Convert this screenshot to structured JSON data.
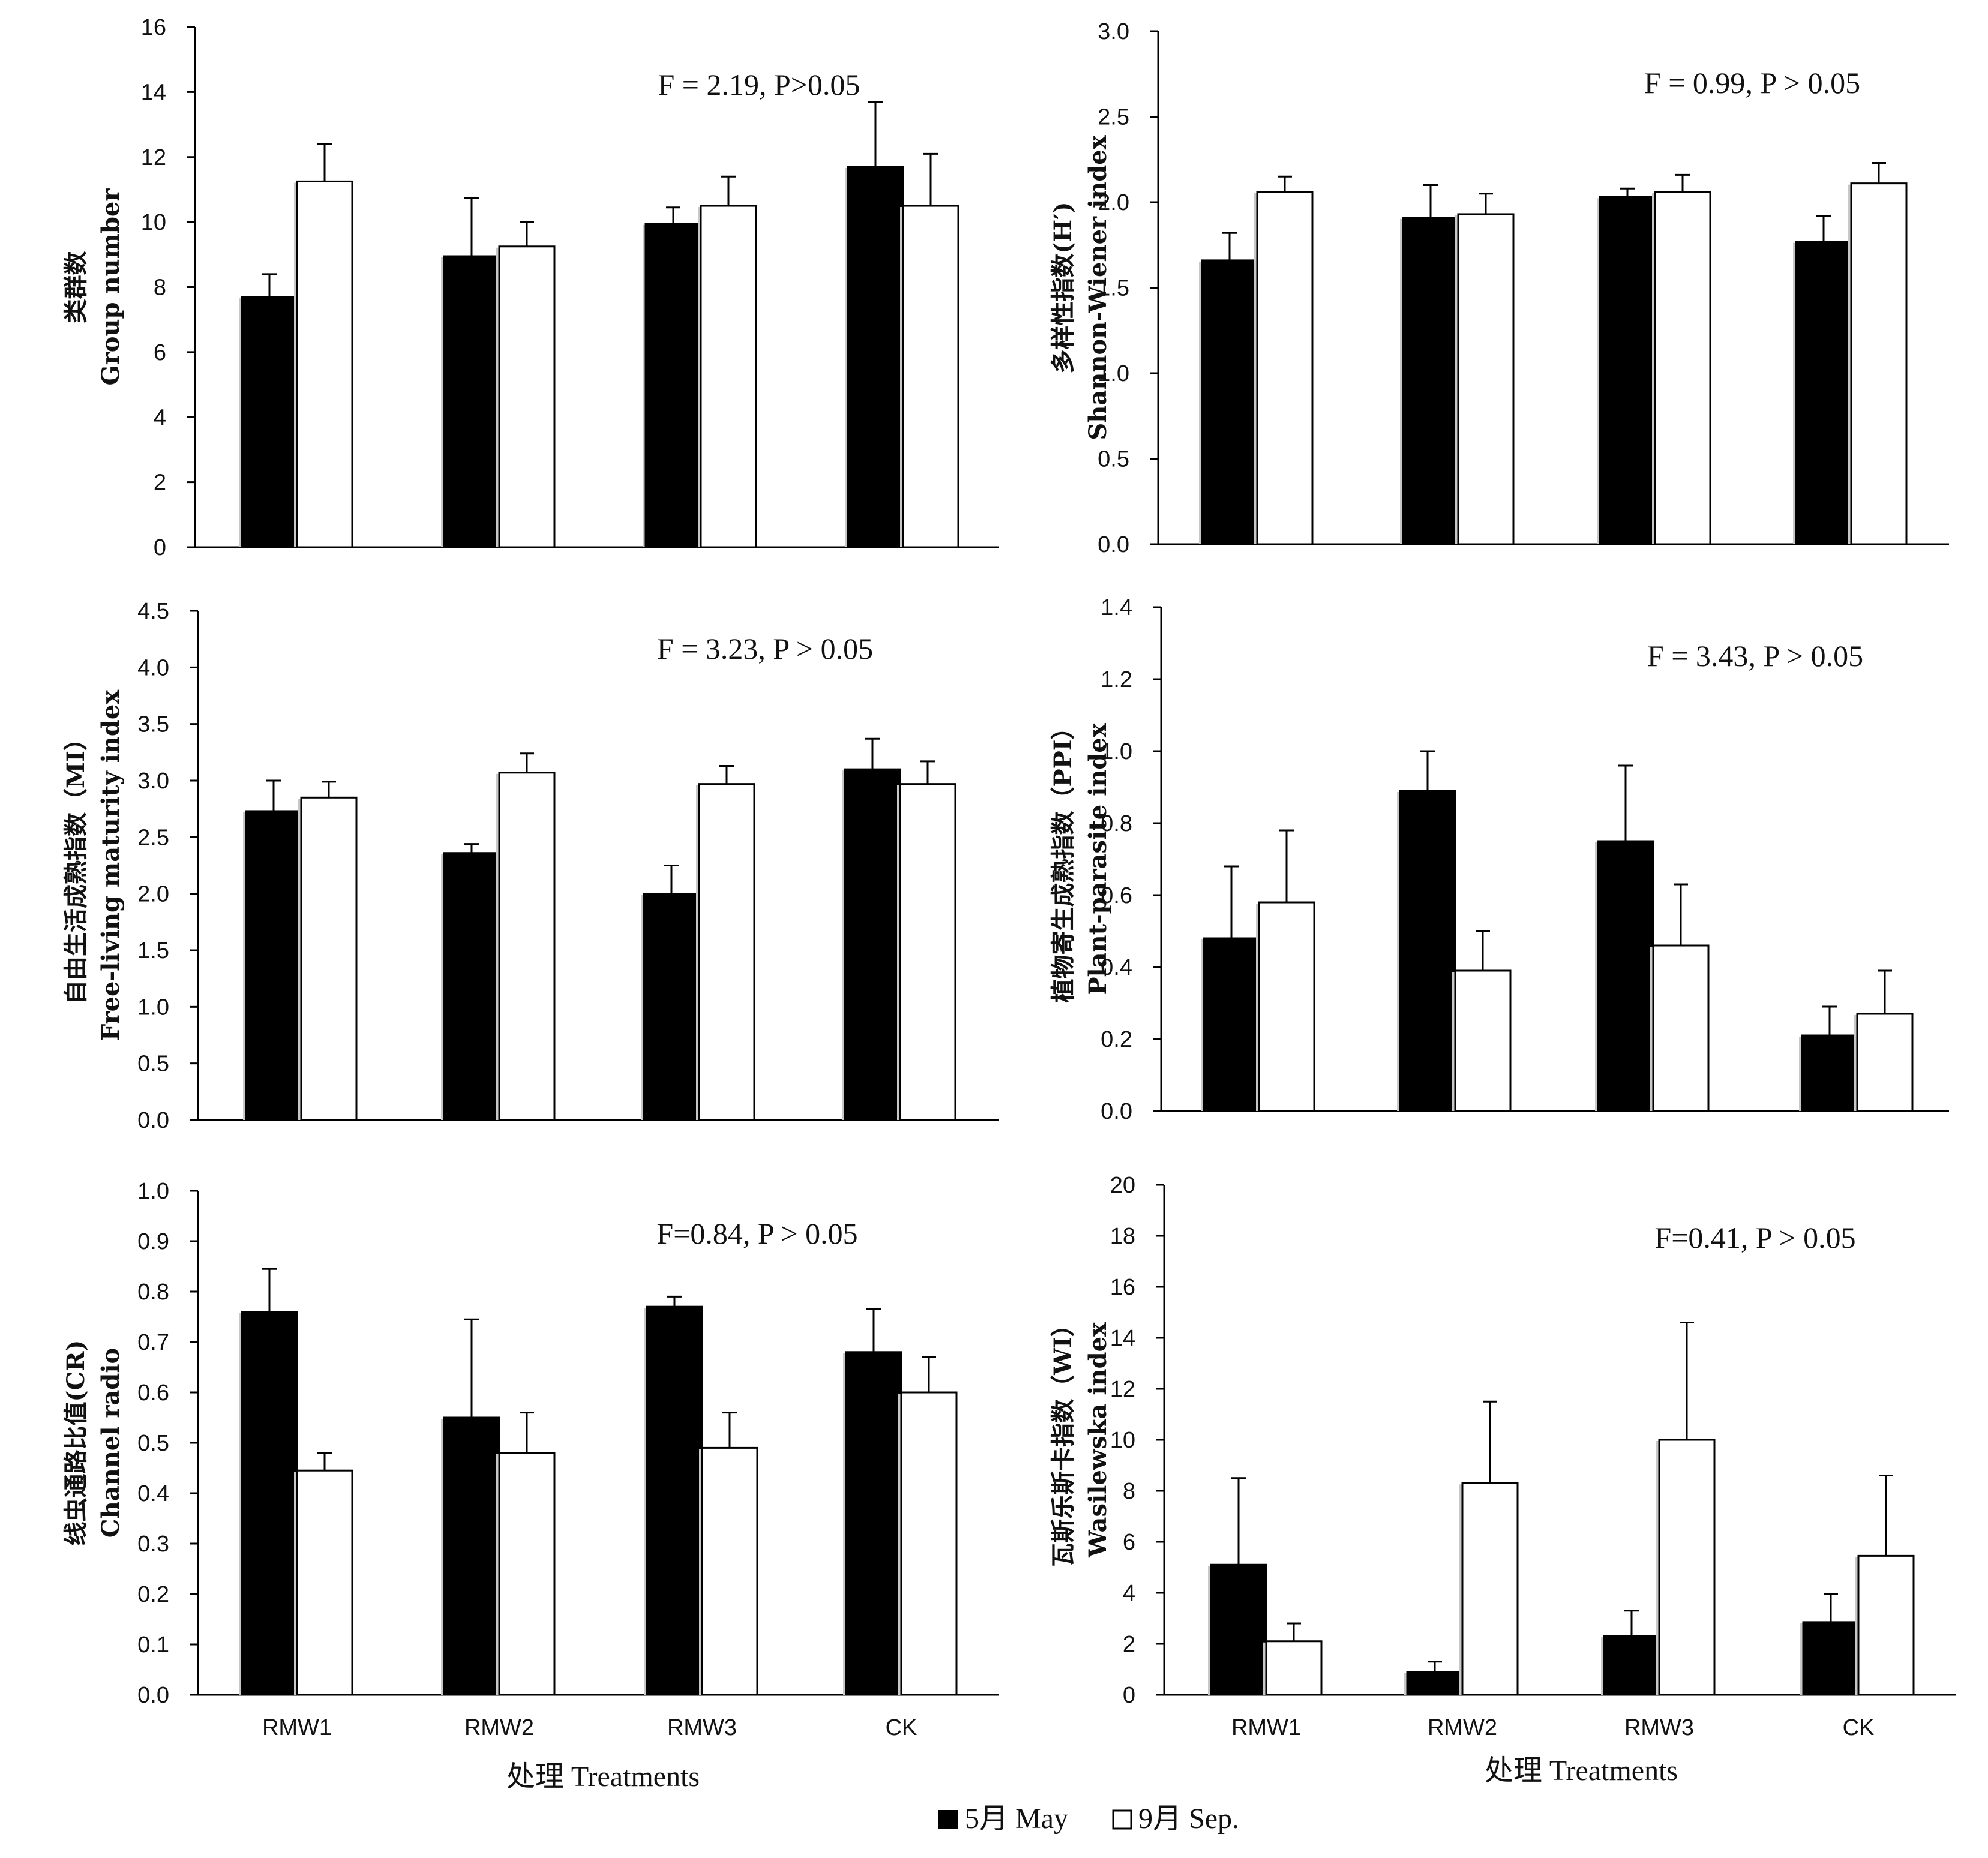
{
  "series_names": [
    "5月 May",
    "9月 Sep."
  ],
  "legend": {
    "items": [
      "5月 May",
      "9月 Sep."
    ]
  },
  "colors": {
    "may": "#000000",
    "sep": "#ffffff",
    "axis": "#000000"
  },
  "chart_data": [
    {
      "type": "bar",
      "categories": [
        "RMW1",
        "RMW2",
        "RMW3",
        "CK"
      ],
      "ylabel": [
        "类群数",
        "Group number"
      ],
      "ylim": [
        0,
        16
      ],
      "yticks": [
        "0",
        "2",
        "4",
        "6",
        "8",
        "10",
        "12",
        "14",
        "16"
      ],
      "stat": "F = 2.19, P>0.05",
      "series": [
        {
          "name": "5月 May",
          "values": [
            7.7,
            8.95,
            9.95,
            11.7
          ],
          "errors": [
            0.7,
            1.8,
            0.5,
            2.0
          ]
        },
        {
          "name": "9月 Sep.",
          "values": [
            11.25,
            9.25,
            10.5,
            10.5
          ],
          "errors": [
            1.15,
            0.75,
            0.9,
            1.6
          ]
        }
      ]
    },
    {
      "type": "bar",
      "categories": [
        "RMW1",
        "RMW2",
        "RMW3",
        "CK"
      ],
      "ylabel": [
        "多样性指数(H′)",
        "Shannon-Wiener index"
      ],
      "ylim": [
        0,
        3
      ],
      "yticks": [
        "0.0",
        "0.5",
        "1.0",
        "1.5",
        "2.0",
        "2.5",
        "3.0"
      ],
      "stat": "F = 0.99, P > 0.05",
      "series": [
        {
          "name": "5月 May",
          "values": [
            1.66,
            1.91,
            2.03,
            1.77
          ],
          "errors": [
            0.16,
            0.19,
            0.05,
            0.15
          ]
        },
        {
          "name": "9月 Sep.",
          "values": [
            2.06,
            1.93,
            2.06,
            2.11
          ],
          "errors": [
            0.09,
            0.12,
            0.1,
            0.12
          ]
        }
      ]
    },
    {
      "type": "bar",
      "categories": [
        "RMW1",
        "RMW2",
        "RMW3",
        "CK"
      ],
      "ylabel": [
        "自由生活成熟指数（MI）",
        "Free-living maturity index"
      ],
      "ylim": [
        0,
        4.5
      ],
      "yticks": [
        "0.0",
        "0.5",
        "1.0",
        "1.5",
        "2.0",
        "2.5",
        "3.0",
        "3.5",
        "4.0",
        "4.5"
      ],
      "stat": "F = 3.23, P > 0.05",
      "series": [
        {
          "name": "5月 May",
          "values": [
            2.73,
            2.36,
            2.0,
            3.1
          ],
          "errors": [
            0.27,
            0.08,
            0.25,
            0.27
          ]
        },
        {
          "name": "9月 Sep.",
          "values": [
            2.85,
            3.07,
            2.97,
            2.97
          ],
          "errors": [
            0.14,
            0.17,
            0.16,
            0.2
          ]
        }
      ]
    },
    {
      "type": "bar",
      "categories": [
        "RMW1",
        "RMW2",
        "RMW3",
        "CK"
      ],
      "ylabel": [
        "植物寄生成熟指数（PPI）",
        "Plant-parasite index"
      ],
      "ylim": [
        0,
        1.4
      ],
      "yticks": [
        "0.0",
        "0.2",
        "0.4",
        "0.6",
        "0.8",
        "1.0",
        "1.2",
        "1.4"
      ],
      "stat": "F = 3.43, P > 0.05",
      "series": [
        {
          "name": "5月 May",
          "values": [
            0.48,
            0.89,
            0.75,
            0.21
          ],
          "errors": [
            0.2,
            0.11,
            0.21,
            0.08
          ]
        },
        {
          "name": "9月 Sep.",
          "values": [
            0.58,
            0.39,
            0.46,
            0.27
          ],
          "errors": [
            0.2,
            0.11,
            0.17,
            0.12
          ]
        }
      ]
    },
    {
      "type": "bar",
      "categories": [
        "RMW1",
        "RMW2",
        "RMW3",
        "CK"
      ],
      "ylabel": [
        "线虫通路比值(CR)",
        "Channel radio"
      ],
      "ylim": [
        0,
        1
      ],
      "yticks": [
        "0.0",
        "0.1",
        "0.2",
        "0.3",
        "0.4",
        "0.5",
        "0.6",
        "0.7",
        "0.8",
        "0.9",
        "1.0"
      ],
      "stat": "F=0.84, P > 0.05",
      "series": [
        {
          "name": "5月 May",
          "values": [
            0.76,
            0.55,
            0.77,
            0.68
          ],
          "errors": [
            0.085,
            0.195,
            0.02,
            0.085
          ]
        },
        {
          "name": "9月 Sep.",
          "values": [
            0.445,
            0.48,
            0.49,
            0.6
          ],
          "errors": [
            0.035,
            0.08,
            0.07,
            0.07
          ]
        }
      ]
    },
    {
      "type": "bar",
      "categories": [
        "RMW1",
        "RMW2",
        "RMW3",
        "CK"
      ],
      "ylabel": [
        "瓦斯乐斯卡指数（WI）",
        "Wasilewska index"
      ],
      "ylim": [
        0,
        20
      ],
      "yticks": [
        "0",
        "2",
        "4",
        "6",
        "8",
        "10",
        "12",
        "14",
        "16",
        "18",
        "20"
      ],
      "stat": "F=0.41, P > 0.05",
      "series": [
        {
          "name": "5月 May",
          "values": [
            5.1,
            0.9,
            2.3,
            2.85
          ],
          "errors": [
            3.4,
            0.4,
            1.0,
            1.1
          ]
        },
        {
          "name": "9月 Sep.",
          "values": [
            2.1,
            8.3,
            10.0,
            5.45
          ],
          "errors": [
            0.7,
            3.2,
            4.6,
            3.15
          ]
        }
      ]
    }
  ],
  "x_axis_title": "处理 Treatments"
}
